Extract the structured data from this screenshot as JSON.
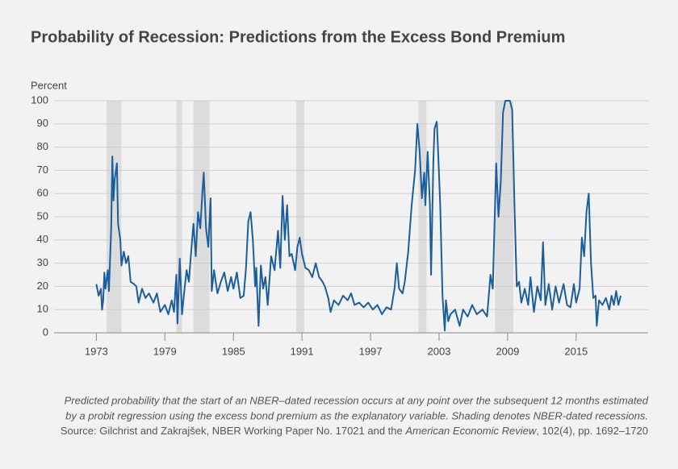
{
  "chart_data": {
    "type": "line",
    "title": "Probability of Recession: Predictions from the Excess Bond Premium",
    "y_label": "Percent",
    "note": [
      "Predicted probability that the start of an NBER–dated recession occurs at any point over the subsequent 12 months estimated",
      "by a probit regression using the excess bond premium as the explanatory variable. Shading denotes NBER-dated recessions."
    ],
    "source_prefix": "Source: Gilchrist and Zakrajšek, NBER Working Paper No. 17021 and the ",
    "source_journal": "American Economic Review",
    "source_suffix": ", 102(4), pp. 1692–1720",
    "color": "#1b5e9b",
    "recession_color": "#dcdcdc",
    "grid": true,
    "xlim": [
      1969.3,
      2021.3
    ],
    "xticks": [
      1973,
      1979,
      1985,
      1991,
      1997,
      2003,
      2009,
      2015
    ],
    "ylim": [
      0,
      100
    ],
    "yticks": [
      0,
      10,
      20,
      30,
      40,
      50,
      60,
      70,
      80,
      90,
      100
    ],
    "recessions": [
      [
        1973.9,
        1975.2
      ],
      [
        1980.0,
        1980.5
      ],
      [
        1981.5,
        1982.9
      ],
      [
        1990.5,
        1991.2
      ],
      [
        2001.2,
        2001.9
      ],
      [
        2007.9,
        2009.5
      ]
    ],
    "x": [
      1973.0,
      1973.2,
      1973.4,
      1973.5,
      1973.6,
      1973.7,
      1973.8,
      1974.0,
      1974.1,
      1974.3,
      1974.4,
      1974.5,
      1974.6,
      1974.8,
      1974.9,
      1975.1,
      1975.2,
      1975.4,
      1975.6,
      1975.8,
      1976.0,
      1976.3,
      1976.5,
      1976.7,
      1977.0,
      1977.3,
      1977.6,
      1978.0,
      1978.3,
      1978.6,
      1979.0,
      1979.3,
      1979.6,
      1979.8,
      1980.0,
      1980.1,
      1980.3,
      1980.5,
      1980.7,
      1980.9,
      1981.1,
      1981.3,
      1981.5,
      1981.7,
      1981.9,
      1982.1,
      1982.3,
      1982.4,
      1982.6,
      1982.8,
      1983.0,
      1983.1,
      1983.3,
      1983.6,
      1983.9,
      1984.2,
      1984.5,
      1984.8,
      1985.0,
      1985.3,
      1985.6,
      1985.9,
      1986.1,
      1986.3,
      1986.5,
      1986.7,
      1986.9,
      1987.0,
      1987.2,
      1987.4,
      1987.6,
      1987.8,
      1988.0,
      1988.3,
      1988.6,
      1988.9,
      1989.1,
      1989.3,
      1989.5,
      1989.7,
      1989.9,
      1990.1,
      1990.4,
      1990.6,
      1990.8,
      1991.0,
      1991.3,
      1991.6,
      1991.9,
      1992.2,
      1992.5,
      1992.8,
      1993.0,
      1993.3,
      1993.5,
      1993.8,
      1994.2,
      1994.6,
      1995.0,
      1995.3,
      1995.6,
      1996.0,
      1996.4,
      1996.8,
      1997.2,
      1997.6,
      1998.0,
      1998.4,
      1998.8,
      1999.1,
      1999.3,
      1999.5,
      1999.8,
      2000.0,
      2000.3,
      2000.6,
      2000.9,
      2001.1,
      2001.3,
      2001.5,
      2001.7,
      2001.8,
      2002.0,
      2002.2,
      2002.3,
      2002.5,
      2002.6,
      2002.8,
      2002.9,
      2003.1,
      2003.3,
      2003.5,
      2003.6,
      2003.8,
      2004.0,
      2004.4,
      2004.8,
      2005.1,
      2005.5,
      2005.9,
      2006.3,
      2006.8,
      2007.2,
      2007.5,
      2007.7,
      2008.0,
      2008.2,
      2008.4,
      2008.6,
      2008.8,
      2009.2,
      2009.4,
      2009.6,
      2009.8,
      2010.0,
      2010.2,
      2010.5,
      2010.8,
      2011.0,
      2011.3,
      2011.6,
      2011.9,
      2012.1,
      2012.3,
      2012.6,
      2012.9,
      2013.2,
      2013.5,
      2013.9,
      2014.2,
      2014.5,
      2014.8,
      2015.0,
      2015.3,
      2015.5,
      2015.7,
      2015.9,
      2016.1,
      2016.3,
      2016.5,
      2016.7,
      2016.8,
      2017.0,
      2017.3,
      2017.6,
      2017.9,
      2018.1,
      2018.3,
      2018.5,
      2018.7,
      2018.9
    ],
    "values": [
      21,
      16,
      19,
      10,
      14,
      26,
      19,
      27,
      18,
      45,
      76,
      57,
      66,
      73,
      47,
      40,
      29,
      35,
      30,
      33,
      22,
      21,
      20,
      13,
      19,
      15,
      17,
      13,
      17,
      9,
      12,
      8,
      14,
      9,
      25,
      4,
      32,
      8,
      18,
      27,
      22,
      35,
      47,
      33,
      52,
      45,
      62,
      69,
      45,
      37,
      58,
      18,
      27,
      17,
      22,
      26,
      18,
      24,
      19,
      26,
      15,
      16,
      28,
      48,
      52,
      40,
      20,
      28,
      3,
      29,
      19,
      24,
      12,
      33,
      27,
      44,
      28,
      59,
      40,
      55,
      33,
      34,
      27,
      37,
      41,
      34,
      28,
      27,
      24,
      30,
      24,
      22,
      20,
      15,
      9,
      14,
      12,
      16,
      14,
      17,
      12,
      13,
      11,
      13,
      10,
      12,
      8,
      11,
      10,
      19,
      30,
      19,
      17,
      22,
      35,
      55,
      70,
      90,
      78,
      58,
      69,
      55,
      78,
      55,
      25,
      74,
      88,
      91,
      80,
      55,
      16,
      1,
      14,
      5,
      8,
      10,
      3,
      10,
      7,
      12,
      8,
      10,
      7,
      25,
      19,
      73,
      50,
      65,
      95,
      100,
      100,
      96,
      55,
      20,
      22,
      13,
      19,
      12,
      24,
      9,
      20,
      14,
      39,
      12,
      21,
      10,
      20,
      13,
      21,
      12,
      11,
      21,
      13,
      19,
      41,
      33,
      52,
      60,
      30,
      15,
      16,
      3,
      14,
      12,
      15,
      10,
      16,
      12,
      18,
      12,
      16
    ]
  }
}
